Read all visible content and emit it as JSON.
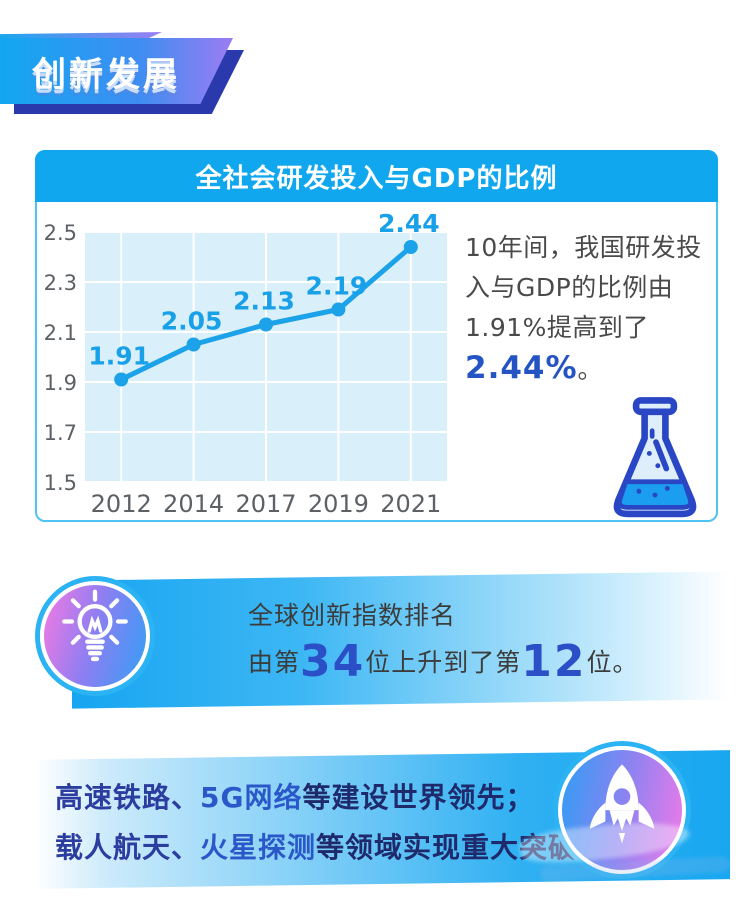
{
  "header": {
    "title": "创新发展"
  },
  "chart_card": {
    "title": "全社会研发投入与GDP的比例",
    "description": {
      "d1": "10年间，我国研发投入与GDP的比例由1.91%提高到了",
      "d2": "2.44%",
      "d3": "。"
    }
  },
  "chart_data": {
    "type": "line",
    "title": "全社会研发投入与GDP的比例",
    "categories": [
      "2012",
      "2014",
      "2017",
      "2019",
      "2021"
    ],
    "values": [
      1.91,
      2.05,
      2.13,
      2.19,
      2.44
    ],
    "data_labels": [
      "1.91",
      "2.05",
      "2.13",
      "2.19",
      "2.44"
    ],
    "xlabel": "",
    "ylabel": "",
    "ylim": [
      1.5,
      2.5
    ],
    "yticks": [
      1.5,
      1.7,
      1.9,
      2.1,
      2.3,
      2.5
    ],
    "grid": true,
    "legend": "none",
    "line_color": "#1ba2e9",
    "marker_color": "#1ba2e9",
    "plot_bg": "#d9effa",
    "grid_color": "#ffffff",
    "label_color": "#18a0e8",
    "tick_color": "#5c6166"
  },
  "innovation_index": {
    "line1": "全球创新指数排名",
    "seg1": "由第",
    "num1": "34",
    "seg2": "位上升到了第",
    "num2": "12",
    "seg3": "位。"
  },
  "achievements": {
    "l1a": "高速铁路、",
    "l1b": "5G网络",
    "l1c": "等建设世界领先；",
    "l2a": "载人航天、",
    "l2b": "火星探测",
    "l2c": "等领域实现重大突破。"
  },
  "icons": {
    "chart_side": "flask-icon",
    "index_badge": "lightbulb-icon",
    "achievement_badge": "rocket-icon"
  },
  "colors": {
    "banner_gradient_start": "#12a7f0",
    "banner_gradient_end": "#9b7cf2",
    "banner_shadow": "#2a3aad",
    "card_header": "#11a7ef",
    "card_border": "#4fc3f3",
    "highlight_blue": "#2454c3",
    "big_number_blue": "#2b4fc6",
    "flask_outline": "#2946c5",
    "flask_liquid": "#1b9df0",
    "badge_ring": "#2cb3f3",
    "bulb_gradient": [
      "#f57ae3",
      "#339ff5"
    ],
    "rocket_gradient": [
      "#2f9df4",
      "#f07ae8"
    ]
  }
}
